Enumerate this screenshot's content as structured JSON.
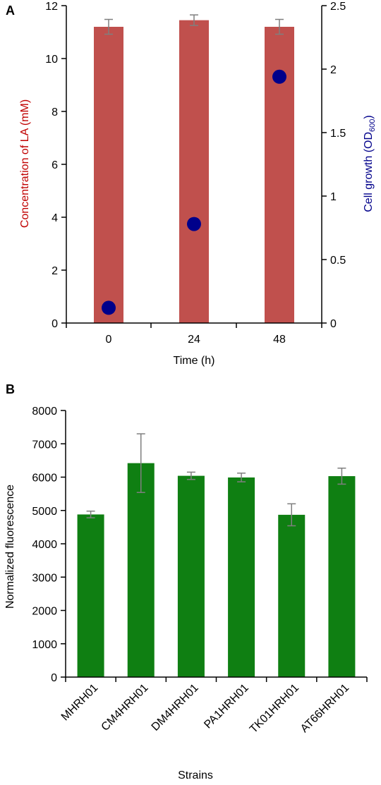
{
  "colors": {
    "bar_a": "#c0504d",
    "dot_a": "#00008b",
    "bar_b": "#0f7f12",
    "axis": "#000000",
    "error_bar": "#7f7f7f",
    "left_label_a": "#c00000",
    "right_label_a": "#00008b"
  },
  "chart_data": [
    {
      "panel_label": "A",
      "type": "bar",
      "categories": [
        "0",
        "24",
        "48"
      ],
      "series": [
        {
          "name": "Concentration of LA (mM)",
          "type": "bar",
          "axis": "left",
          "values": [
            11.2,
            11.45,
            11.2
          ],
          "errors": [
            0.28,
            0.2,
            0.28
          ]
        },
        {
          "name": "Cell growth (OD600)",
          "type": "scatter",
          "axis": "right",
          "values": [
            0.12,
            0.78,
            1.94
          ]
        }
      ],
      "xlabel": "Time (h)",
      "ylabel_left": "Concentration of LA (mM)",
      "ylabel_right_main": "Cell growth (OD",
      "ylabel_right_sub": "600",
      "ylabel_right_close": ")",
      "ylim_left": [
        0,
        12
      ],
      "yticks_left": [
        0,
        2,
        4,
        6,
        8,
        10,
        12
      ],
      "ylim_right": [
        0,
        2.5
      ],
      "yticks_right": [
        "0",
        "0.5",
        "1",
        "1.5",
        "2",
        "2.5"
      ],
      "grid": false,
      "legend": "none"
    },
    {
      "panel_label": "B",
      "type": "bar",
      "categories": [
        "MHRH01",
        "CM4HRH01",
        "DM4HRH01",
        "PA1HRH01",
        "TK01HRH01",
        "AT66HRH01"
      ],
      "values": [
        4880,
        6420,
        6040,
        5990,
        4870,
        6030
      ],
      "errors": [
        100,
        880,
        110,
        130,
        330,
        240
      ],
      "xlabel": "Strains",
      "ylabel": "Normalized fluorescence",
      "ylim": [
        0,
        8000
      ],
      "yticks": [
        0,
        1000,
        2000,
        3000,
        4000,
        5000,
        6000,
        7000,
        8000
      ],
      "grid": false,
      "legend": "none"
    }
  ]
}
